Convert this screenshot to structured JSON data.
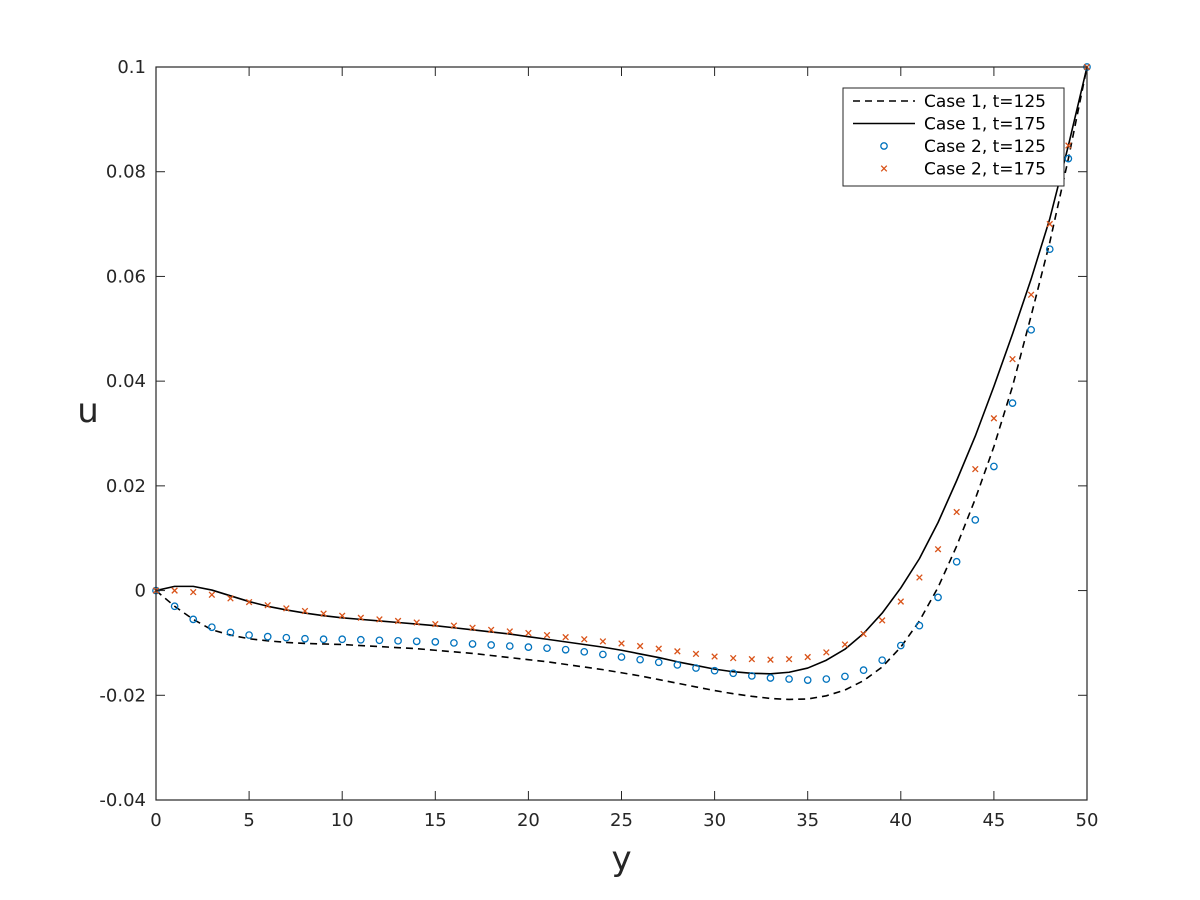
{
  "chart_data": {
    "type": "line",
    "title": "",
    "xlabel": "y",
    "ylabel": "u",
    "xlim": [
      0,
      50
    ],
    "ylim": [
      -0.04,
      0.1
    ],
    "xticks": [
      0,
      5,
      10,
      15,
      20,
      25,
      30,
      35,
      40,
      45,
      50
    ],
    "xtick_labels": [
      "0",
      "5",
      "10",
      "15",
      "20",
      "25",
      "30",
      "35",
      "40",
      "45",
      "50"
    ],
    "yticks": [
      -0.04,
      -0.02,
      0,
      0.02,
      0.04,
      0.06,
      0.08,
      0.1
    ],
    "ytick_labels": [
      "-0.04",
      "-0.02",
      "0",
      "0.02",
      "0.04",
      "0.06",
      "0.08",
      "0.1"
    ],
    "grid": false,
    "legend_position": "top-right",
    "series": [
      {
        "name": "Case 1, t=125",
        "style": "dashed-line",
        "color": "#000000",
        "x": [
          0,
          1,
          2,
          3,
          4,
          5,
          6,
          7,
          8,
          9,
          10,
          11,
          12,
          13,
          14,
          15,
          16,
          17,
          18,
          19,
          20,
          21,
          22,
          23,
          24,
          25,
          26,
          27,
          28,
          29,
          30,
          31,
          32,
          33,
          34,
          35,
          36,
          37,
          38,
          39,
          40,
          41,
          42,
          43,
          44,
          45,
          46,
          47,
          48,
          49,
          50
        ],
        "y": [
          0,
          -0.003,
          -0.0055,
          -0.0075,
          -0.0085,
          -0.0092,
          -0.0096,
          -0.0099,
          -0.0101,
          -0.0102,
          -0.0103,
          -0.0105,
          -0.0107,
          -0.0109,
          -0.0111,
          -0.0114,
          -0.0117,
          -0.012,
          -0.0124,
          -0.0128,
          -0.0132,
          -0.0136,
          -0.0141,
          -0.0146,
          -0.0151,
          -0.0157,
          -0.0163,
          -0.017,
          -0.0177,
          -0.0184,
          -0.0191,
          -0.0197,
          -0.0202,
          -0.0206,
          -0.0208,
          -0.0207,
          -0.0201,
          -0.019,
          -0.0172,
          -0.0146,
          -0.0108,
          -0.0058,
          0.0006,
          0.0085,
          0.0175,
          0.0275,
          0.039,
          0.0525,
          0.0665,
          0.0825,
          0.1
        ]
      },
      {
        "name": "Case 1, t=175",
        "style": "solid-line",
        "color": "#000000",
        "x": [
          0,
          1,
          2,
          3,
          4,
          5,
          6,
          7,
          8,
          9,
          10,
          11,
          12,
          13,
          14,
          15,
          16,
          17,
          18,
          19,
          20,
          21,
          22,
          23,
          24,
          25,
          26,
          27,
          28,
          29,
          30,
          31,
          32,
          33,
          34,
          35,
          36,
          37,
          38,
          39,
          40,
          41,
          42,
          43,
          44,
          45,
          46,
          47,
          48,
          49,
          50
        ],
        "y": [
          0,
          0.0008,
          0.0008,
          0.0001,
          -0.001,
          -0.0021,
          -0.003,
          -0.0037,
          -0.0043,
          -0.0048,
          -0.0052,
          -0.0055,
          -0.0058,
          -0.0061,
          -0.0064,
          -0.0067,
          -0.0071,
          -0.0075,
          -0.0079,
          -0.0083,
          -0.0088,
          -0.0093,
          -0.0098,
          -0.0103,
          -0.0108,
          -0.0114,
          -0.0121,
          -0.0128,
          -0.0136,
          -0.0143,
          -0.015,
          -0.0155,
          -0.0158,
          -0.0159,
          -0.0156,
          -0.0148,
          -0.0133,
          -0.0112,
          -0.0082,
          -0.0043,
          0.0005,
          0.0061,
          0.013,
          0.021,
          0.0295,
          0.039,
          0.049,
          0.0595,
          0.071,
          0.085,
          0.1
        ]
      },
      {
        "name": "Case 2, t=125",
        "style": "circle-marker",
        "color": "#0072BD",
        "x": [
          0,
          1,
          2,
          3,
          4,
          5,
          6,
          7,
          8,
          9,
          10,
          11,
          12,
          13,
          14,
          15,
          16,
          17,
          18,
          19,
          20,
          21,
          22,
          23,
          24,
          25,
          26,
          27,
          28,
          29,
          30,
          31,
          32,
          33,
          34,
          35,
          36,
          37,
          38,
          39,
          40,
          41,
          42,
          43,
          44,
          45,
          46,
          47,
          48,
          49,
          50
        ],
        "y": [
          0,
          -0.003,
          -0.0055,
          -0.007,
          -0.008,
          -0.0085,
          -0.0088,
          -0.009,
          -0.0092,
          -0.0093,
          -0.0093,
          -0.0094,
          -0.0095,
          -0.0096,
          -0.0097,
          -0.0098,
          -0.01,
          -0.0102,
          -0.0104,
          -0.0106,
          -0.0108,
          -0.011,
          -0.0113,
          -0.0117,
          -0.0122,
          -0.0127,
          -0.0132,
          -0.0137,
          -0.0142,
          -0.0148,
          -0.0153,
          -0.0158,
          -0.0163,
          -0.0167,
          -0.0169,
          -0.0171,
          -0.0169,
          -0.0164,
          -0.0152,
          -0.0133,
          -0.0105,
          -0.0067,
          -0.0013,
          0.0055,
          0.0135,
          0.0237,
          0.0358,
          0.0498,
          0.0652,
          0.0825,
          0.1
        ]
      },
      {
        "name": "Case 2, t=175",
        "style": "cross-marker",
        "color": "#D95319",
        "x": [
          0,
          1,
          2,
          3,
          4,
          5,
          6,
          7,
          8,
          9,
          10,
          11,
          12,
          13,
          14,
          15,
          16,
          17,
          18,
          19,
          20,
          21,
          22,
          23,
          24,
          25,
          26,
          27,
          28,
          29,
          30,
          31,
          32,
          33,
          34,
          35,
          36,
          37,
          38,
          39,
          40,
          41,
          42,
          43,
          44,
          45,
          46,
          47,
          48,
          49,
          50
        ],
        "y": [
          0,
          0,
          -0.0003,
          -0.0008,
          -0.0015,
          -0.0022,
          -0.0028,
          -0.0034,
          -0.0039,
          -0.0044,
          -0.0048,
          -0.0052,
          -0.0055,
          -0.0058,
          -0.0061,
          -0.0064,
          -0.0067,
          -0.0071,
          -0.0075,
          -0.0078,
          -0.0081,
          -0.0085,
          -0.0089,
          -0.0093,
          -0.0097,
          -0.0101,
          -0.0106,
          -0.0111,
          -0.0116,
          -0.0121,
          -0.0126,
          -0.0129,
          -0.0131,
          -0.0132,
          -0.0131,
          -0.0127,
          -0.0118,
          -0.0103,
          -0.0083,
          -0.0057,
          -0.0021,
          0.0025,
          0.0079,
          0.015,
          0.0232,
          0.0329,
          0.0442,
          0.0565,
          0.07,
          0.085,
          0.1
        ]
      }
    ]
  }
}
